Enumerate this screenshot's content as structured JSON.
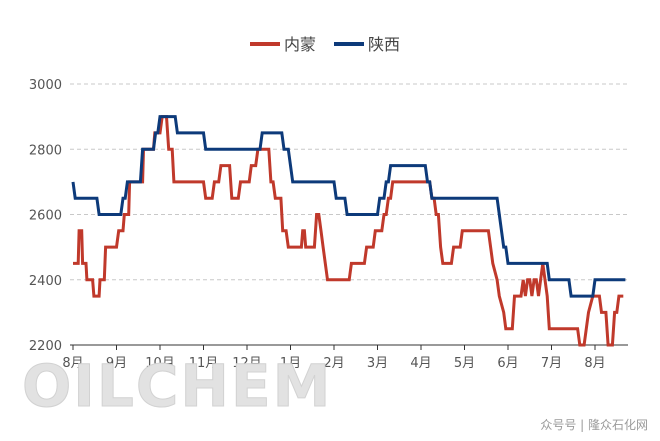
{
  "chart_data": {
    "type": "line",
    "legend_position": "top-center",
    "grid": true,
    "ylim": [
      2200,
      3000
    ],
    "yticks": [
      2200,
      2400,
      2600,
      2800,
      3000
    ],
    "month_labels": [
      "8月",
      "9月",
      "10月",
      "11月",
      "12月",
      "1月",
      "2月",
      "3月",
      "4月",
      "5月",
      "6月",
      "7月",
      "8月"
    ],
    "x_unit_note": "x values are months elapsed from the first 8月 tick",
    "xlim": [
      0,
      12.7
    ],
    "series": [
      {
        "name": "内蒙",
        "color": "#c0392b",
        "points": [
          [
            0.0,
            2450
          ],
          [
            0.12,
            2450
          ],
          [
            0.14,
            2550
          ],
          [
            0.2,
            2550
          ],
          [
            0.22,
            2450
          ],
          [
            0.3,
            2450
          ],
          [
            0.32,
            2400
          ],
          [
            0.45,
            2400
          ],
          [
            0.48,
            2350
          ],
          [
            0.6,
            2350
          ],
          [
            0.62,
            2400
          ],
          [
            0.72,
            2400
          ],
          [
            0.75,
            2500
          ],
          [
            1.0,
            2500
          ],
          [
            1.05,
            2550
          ],
          [
            1.15,
            2550
          ],
          [
            1.18,
            2600
          ],
          [
            1.28,
            2600
          ],
          [
            1.3,
            2700
          ],
          [
            1.6,
            2700
          ],
          [
            1.62,
            2800
          ],
          [
            1.85,
            2800
          ],
          [
            1.88,
            2850
          ],
          [
            2.0,
            2850
          ],
          [
            2.05,
            2900
          ],
          [
            2.15,
            2900
          ],
          [
            2.2,
            2800
          ],
          [
            2.28,
            2800
          ],
          [
            2.32,
            2700
          ],
          [
            3.0,
            2700
          ],
          [
            3.05,
            2650
          ],
          [
            3.2,
            2650
          ],
          [
            3.25,
            2700
          ],
          [
            3.35,
            2700
          ],
          [
            3.4,
            2750
          ],
          [
            3.6,
            2750
          ],
          [
            3.65,
            2650
          ],
          [
            3.8,
            2650
          ],
          [
            3.85,
            2700
          ],
          [
            4.05,
            2700
          ],
          [
            4.1,
            2750
          ],
          [
            4.2,
            2750
          ],
          [
            4.25,
            2800
          ],
          [
            4.5,
            2800
          ],
          [
            4.55,
            2700
          ],
          [
            4.6,
            2700
          ],
          [
            4.65,
            2650
          ],
          [
            4.78,
            2650
          ],
          [
            4.82,
            2550
          ],
          [
            4.9,
            2550
          ],
          [
            4.95,
            2500
          ],
          [
            5.25,
            2500
          ],
          [
            5.28,
            2550
          ],
          [
            5.32,
            2550
          ],
          [
            5.35,
            2500
          ],
          [
            5.55,
            2500
          ],
          [
            5.6,
            2600
          ],
          [
            5.65,
            2600
          ],
          [
            5.7,
            2550
          ],
          [
            5.75,
            2500
          ],
          [
            5.8,
            2450
          ],
          [
            5.85,
            2400
          ],
          [
            6.35,
            2400
          ],
          [
            6.4,
            2450
          ],
          [
            6.7,
            2450
          ],
          [
            6.75,
            2500
          ],
          [
            6.9,
            2500
          ],
          [
            6.95,
            2550
          ],
          [
            7.1,
            2550
          ],
          [
            7.15,
            2600
          ],
          [
            7.2,
            2600
          ],
          [
            7.25,
            2650
          ],
          [
            7.3,
            2650
          ],
          [
            7.35,
            2700
          ],
          [
            8.2,
            2700
          ],
          [
            8.25,
            2650
          ],
          [
            8.3,
            2650
          ],
          [
            8.35,
            2600
          ],
          [
            8.4,
            2600
          ],
          [
            8.45,
            2500
          ],
          [
            8.5,
            2450
          ],
          [
            8.7,
            2450
          ],
          [
            8.75,
            2500
          ],
          [
            8.9,
            2500
          ],
          [
            8.95,
            2550
          ],
          [
            9.55,
            2550
          ],
          [
            9.6,
            2500
          ],
          [
            9.65,
            2450
          ],
          [
            9.75,
            2400
          ],
          [
            9.8,
            2350
          ],
          [
            9.9,
            2300
          ],
          [
            9.95,
            2250
          ],
          [
            10.1,
            2250
          ],
          [
            10.15,
            2350
          ],
          [
            10.3,
            2350
          ],
          [
            10.35,
            2400
          ],
          [
            10.4,
            2350
          ],
          [
            10.45,
            2400
          ],
          [
            10.5,
            2400
          ],
          [
            10.55,
            2350
          ],
          [
            10.6,
            2400
          ],
          [
            10.65,
            2400
          ],
          [
            10.7,
            2350
          ],
          [
            10.75,
            2400
          ],
          [
            10.8,
            2450
          ],
          [
            10.85,
            2400
          ],
          [
            10.9,
            2350
          ],
          [
            10.95,
            2250
          ],
          [
            11.6,
            2250
          ],
          [
            11.65,
            2200
          ],
          [
            11.75,
            2200
          ],
          [
            11.8,
            2250
          ],
          [
            11.85,
            2300
          ],
          [
            11.95,
            2350
          ],
          [
            12.1,
            2350
          ],
          [
            12.15,
            2300
          ],
          [
            12.25,
            2300
          ],
          [
            12.3,
            2200
          ],
          [
            12.4,
            2200
          ],
          [
            12.45,
            2300
          ],
          [
            12.5,
            2300
          ],
          [
            12.55,
            2350
          ],
          [
            12.65,
            2350
          ]
        ]
      },
      {
        "name": "陕西",
        "color": "#0d3a7a",
        "points": [
          [
            0.0,
            2700
          ],
          [
            0.05,
            2650
          ],
          [
            0.55,
            2650
          ],
          [
            0.6,
            2600
          ],
          [
            1.1,
            2600
          ],
          [
            1.15,
            2650
          ],
          [
            1.2,
            2650
          ],
          [
            1.25,
            2700
          ],
          [
            1.55,
            2700
          ],
          [
            1.6,
            2800
          ],
          [
            1.85,
            2800
          ],
          [
            1.9,
            2850
          ],
          [
            1.95,
            2850
          ],
          [
            2.0,
            2900
          ],
          [
            2.35,
            2900
          ],
          [
            2.4,
            2850
          ],
          [
            3.0,
            2850
          ],
          [
            3.05,
            2800
          ],
          [
            4.3,
            2800
          ],
          [
            4.35,
            2850
          ],
          [
            4.8,
            2850
          ],
          [
            4.85,
            2800
          ],
          [
            4.95,
            2800
          ],
          [
            5.0,
            2750
          ],
          [
            5.05,
            2700
          ],
          [
            6.0,
            2700
          ],
          [
            6.05,
            2650
          ],
          [
            6.25,
            2650
          ],
          [
            6.3,
            2600
          ],
          [
            7.0,
            2600
          ],
          [
            7.05,
            2650
          ],
          [
            7.15,
            2650
          ],
          [
            7.2,
            2700
          ],
          [
            7.25,
            2700
          ],
          [
            7.3,
            2750
          ],
          [
            8.1,
            2750
          ],
          [
            8.15,
            2700
          ],
          [
            8.2,
            2700
          ],
          [
            8.25,
            2650
          ],
          [
            9.75,
            2650
          ],
          [
            9.8,
            2600
          ],
          [
            9.85,
            2550
          ],
          [
            9.9,
            2500
          ],
          [
            9.95,
            2500
          ],
          [
            10.0,
            2450
          ],
          [
            10.9,
            2450
          ],
          [
            10.95,
            2400
          ],
          [
            11.4,
            2400
          ],
          [
            11.45,
            2350
          ],
          [
            11.95,
            2350
          ],
          [
            12.0,
            2400
          ],
          [
            12.7,
            2400
          ]
        ]
      }
    ]
  },
  "watermark": "OILCHEM",
  "credit": "众号号 | 隆众石化网"
}
